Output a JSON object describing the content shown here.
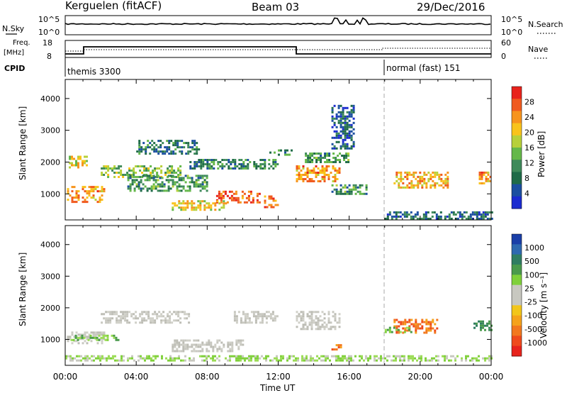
{
  "header": {
    "station": "Kerguelen (fitACF)",
    "beam": "Beam 03",
    "date": "29/Dec/2016"
  },
  "status_panel": {
    "nsky_label": "N.Sky",
    "nsky_ticks": [
      "10^5",
      "10^0"
    ],
    "nsearch_label": "N.Search",
    "nsearch_ticks": [
      "10^5",
      "10^0"
    ],
    "freq_label": "Freq.",
    "freq_unit": "[MHz]",
    "freq_ticks": [
      "18",
      "8"
    ],
    "nave_label": "Nave",
    "nave_ticks": [
      "60",
      "0"
    ],
    "cpid_label": "CPID",
    "cpid_modes": [
      {
        "name": "themis 3300",
        "start_hour": 0
      },
      {
        "name": "normal (fast) 151",
        "start_hour": 18
      }
    ]
  },
  "chart_data": [
    {
      "type": "heatmap",
      "title": "",
      "xlabel": "Time UT",
      "ylabel": "Slant Range [km]",
      "x_ticks": [
        "00:00",
        "04:00",
        "08:00",
        "12:00",
        "16:00",
        "20:00",
        "00:00"
      ],
      "y_ticks": [
        1000,
        2000,
        3000,
        4000
      ],
      "xlim_hours": [
        0,
        24
      ],
      "ylim_km": [
        180,
        4600
      ],
      "colorbar": {
        "label": "Power [dB]",
        "ticks": [
          "28",
          "24",
          "20",
          "16",
          "12",
          "8",
          "4"
        ],
        "colors": [
          "#e8231c",
          "#f05a1f",
          "#f7941d",
          "#f9c31b",
          "#b7d03a",
          "#65b84a",
          "#3e8a5a",
          "#1f6b48",
          "#1b4fa0",
          "#1b2bd0"
        ]
      },
      "echo_regions": [
        {
          "t0": 0.1,
          "t1": 2.2,
          "r0": 750,
          "r1": 1250,
          "level": 22
        },
        {
          "t0": 0.2,
          "t1": 1.2,
          "r0": 1800,
          "r1": 2200,
          "level": 18
        },
        {
          "t0": 2.0,
          "t1": 6.5,
          "r0": 1500,
          "r1": 1900,
          "level": 14
        },
        {
          "t0": 3.5,
          "t1": 8.0,
          "r0": 1100,
          "r1": 1600,
          "level": 10
        },
        {
          "t0": 4.0,
          "t1": 7.5,
          "r0": 2250,
          "r1": 2700,
          "level": 8
        },
        {
          "t0": 8.5,
          "t1": 11.0,
          "r0": 700,
          "r1": 1100,
          "level": 25
        },
        {
          "t0": 6.0,
          "t1": 9.0,
          "r0": 500,
          "r1": 800,
          "level": 18
        },
        {
          "t0": 7.0,
          "t1": 12.0,
          "r0": 1800,
          "r1": 2100,
          "level": 9
        },
        {
          "t0": 11.2,
          "t1": 12.0,
          "r0": 600,
          "r1": 950,
          "level": 22
        },
        {
          "t0": 11.5,
          "t1": 12.8,
          "r0": 2200,
          "r1": 2400,
          "level": 9
        },
        {
          "t0": 13.0,
          "t1": 15.5,
          "r0": 1400,
          "r1": 1900,
          "level": 22
        },
        {
          "t0": 13.5,
          "t1": 16.0,
          "r0": 2000,
          "r1": 2300,
          "level": 10
        },
        {
          "t0": 15.0,
          "t1": 17.0,
          "r0": 1000,
          "r1": 1300,
          "level": 10
        },
        {
          "t0": 15.0,
          "t1": 16.3,
          "r0": 2400,
          "r1": 3800,
          "level": 5
        },
        {
          "t0": 18.5,
          "t1": 21.5,
          "r0": 1200,
          "r1": 1700,
          "level": 20
        },
        {
          "t0": 23.3,
          "t1": 24.0,
          "r0": 1300,
          "r1": 1700,
          "level": 22
        },
        {
          "t0": 18.0,
          "t1": 24.0,
          "r0": 200,
          "r1": 450,
          "level": 6
        }
      ]
    },
    {
      "type": "heatmap",
      "title": "",
      "xlabel": "Time UT",
      "ylabel": "Slant Range [km]",
      "x_ticks": [
        "00:00",
        "04:00",
        "08:00",
        "12:00",
        "16:00",
        "20:00",
        "00:00"
      ],
      "y_ticks": [
        1000,
        2000,
        3000,
        4000
      ],
      "xlim_hours": [
        0,
        24
      ],
      "ylim_km": [
        180,
        4600
      ],
      "colorbar": {
        "label": "Velocity [m s⁻¹]",
        "ticks": [
          "1000",
          "500",
          "100",
          "25",
          "-25",
          "-100",
          "-500",
          "-1000"
        ],
        "colors": [
          "#1a3fa8",
          "#2e69b0",
          "#2f7d62",
          "#4a9a4c",
          "#7fd03a",
          "#c8c8c0",
          "#c8c8c0",
          "#f2c61a",
          "#f5a21b",
          "#f2781e",
          "#ef4a1c",
          "#e8231c"
        ]
      },
      "echo_regions": [
        {
          "t0": 0.1,
          "t1": 2.2,
          "r0": 850,
          "r1": 1250,
          "class": "low"
        },
        {
          "t0": 0.3,
          "t1": 3.0,
          "r0": 1000,
          "r1": 1150,
          "class": "pos_green"
        },
        {
          "t0": 2.0,
          "t1": 7.0,
          "r0": 1500,
          "r1": 1900,
          "class": "low"
        },
        {
          "t0": 6.0,
          "t1": 10.0,
          "r0": 600,
          "r1": 1000,
          "class": "low"
        },
        {
          "t0": 9.5,
          "t1": 12.0,
          "r0": 1500,
          "r1": 1900,
          "class": "low"
        },
        {
          "t0": 13.0,
          "t1": 15.5,
          "r0": 1300,
          "r1": 1900,
          "class": "low"
        },
        {
          "t0": 15.0,
          "t1": 15.5,
          "r0": 650,
          "r1": 850,
          "class": "neg_orange"
        },
        {
          "t0": 18.5,
          "t1": 21.0,
          "r0": 1200,
          "r1": 1650,
          "class": "neg_orange"
        },
        {
          "t0": 18.0,
          "t1": 19.5,
          "r0": 1200,
          "r1": 1400,
          "class": "pos_green"
        },
        {
          "t0": 23.0,
          "t1": 24.0,
          "r0": 1300,
          "r1": 1600,
          "class": "pos_teal"
        },
        {
          "t0": 0.0,
          "t1": 24.0,
          "r0": 350,
          "r1": 500,
          "class": "pos_lightgreen"
        }
      ]
    }
  ],
  "fill_color": "#ffffff"
}
